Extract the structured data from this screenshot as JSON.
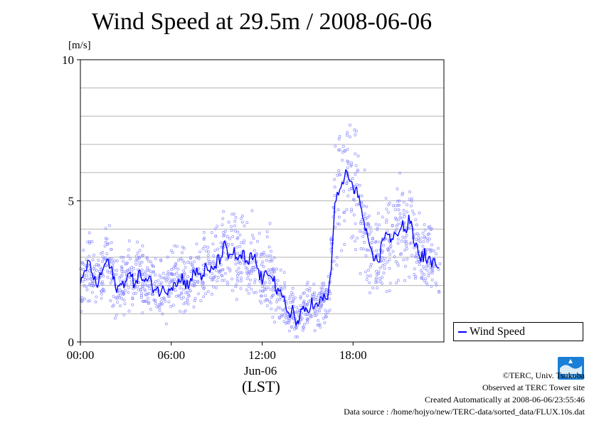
{
  "title": "Wind Speed at 29.5m / 2008-06-06",
  "y_unit": "[m/s]",
  "x_date_label": "Jun-06",
  "x_timezone_label": "(LST)",
  "legend_label": "Wind Speed",
  "credits": {
    "copyright": "©TERC, Univ. Tsukuba",
    "observed": "Observed at TERC Tower site",
    "created": "Created Automatically at 2008-06-06/23:55:46",
    "source": "Data source : /home/hojyo/new/TERC-data/sorted_data/FLUX.10s.dat"
  },
  "logo_text": "TERC",
  "colors": {
    "series": "#0000ff",
    "scatter": "#8f8fff",
    "grid": "#b4b4b4",
    "logo": "#1a7fd6"
  },
  "chart_data": {
    "type": "line",
    "x_unit": "hours (LST)",
    "xlim": [
      0,
      24
    ],
    "ylim": [
      0,
      10
    ],
    "y_ticks": [
      0,
      5,
      10
    ],
    "x_ticks": [
      "00:00",
      "06:00",
      "12:00",
      "18:00"
    ],
    "grid": "horizontal every 1 m/s",
    "legend_position": "outside right, bottom",
    "series": [
      {
        "name": "Wind Speed",
        "style": "line (averaged) over scatter of 10 s samples",
        "x": [
          0.0,
          0.25,
          0.5,
          0.75,
          1.0,
          1.25,
          1.5,
          1.75,
          2.0,
          2.25,
          2.5,
          2.75,
          3.0,
          3.25,
          3.5,
          3.75,
          4.0,
          4.25,
          4.5,
          4.75,
          5.0,
          5.25,
          5.5,
          5.75,
          6.0,
          6.25,
          6.5,
          6.75,
          7.0,
          7.25,
          7.5,
          7.75,
          8.0,
          8.25,
          8.5,
          8.75,
          9.0,
          9.25,
          9.5,
          9.75,
          10.0,
          10.25,
          10.5,
          10.75,
          11.0,
          11.25,
          11.5,
          11.75,
          12.0,
          12.25,
          12.5,
          12.75,
          13.0,
          13.25,
          13.5,
          13.75,
          14.0,
          14.25,
          14.5,
          14.75,
          15.0,
          15.25,
          15.5,
          15.75,
          16.0,
          16.25,
          16.5,
          16.75,
          17.0,
          17.25,
          17.5,
          17.75,
          18.0,
          18.25,
          18.5,
          18.75,
          19.0,
          19.25,
          19.5,
          19.75,
          20.0,
          20.25,
          20.5,
          20.75,
          21.0,
          21.25,
          21.5,
          21.75,
          22.0,
          22.25,
          22.5,
          22.75,
          23.0,
          23.25,
          23.5,
          23.75
        ],
        "values": [
          1.9,
          2.4,
          2.8,
          2.6,
          2.0,
          2.2,
          2.6,
          2.9,
          2.6,
          2.1,
          1.9,
          2.0,
          2.3,
          2.4,
          2.1,
          2.3,
          2.4,
          2.1,
          2.2,
          2.0,
          1.9,
          1.8,
          1.8,
          1.9,
          2.0,
          2.2,
          2.1,
          2.3,
          2.0,
          2.2,
          2.4,
          2.5,
          2.3,
          2.6,
          2.4,
          2.6,
          2.8,
          3.0,
          3.4,
          3.0,
          3.2,
          3.1,
          2.8,
          3.2,
          2.6,
          3.0,
          3.0,
          2.5,
          2.2,
          2.3,
          2.6,
          2.3,
          1.7,
          1.6,
          1.4,
          1.0,
          1.2,
          0.6,
          0.9,
          1.1,
          1.2,
          1.4,
          1.2,
          1.3,
          1.6,
          1.5,
          2.1,
          4.6,
          5.2,
          5.5,
          6.0,
          5.8,
          5.3,
          5.6,
          4.7,
          4.2,
          3.4,
          3.0,
          2.9,
          3.0,
          3.7,
          4.0,
          3.5,
          3.7,
          4.0,
          4.2,
          3.9,
          4.4,
          3.6,
          3.3,
          3.0,
          3.1,
          2.8,
          2.9,
          2.6,
          2.3
        ]
      }
    ]
  }
}
